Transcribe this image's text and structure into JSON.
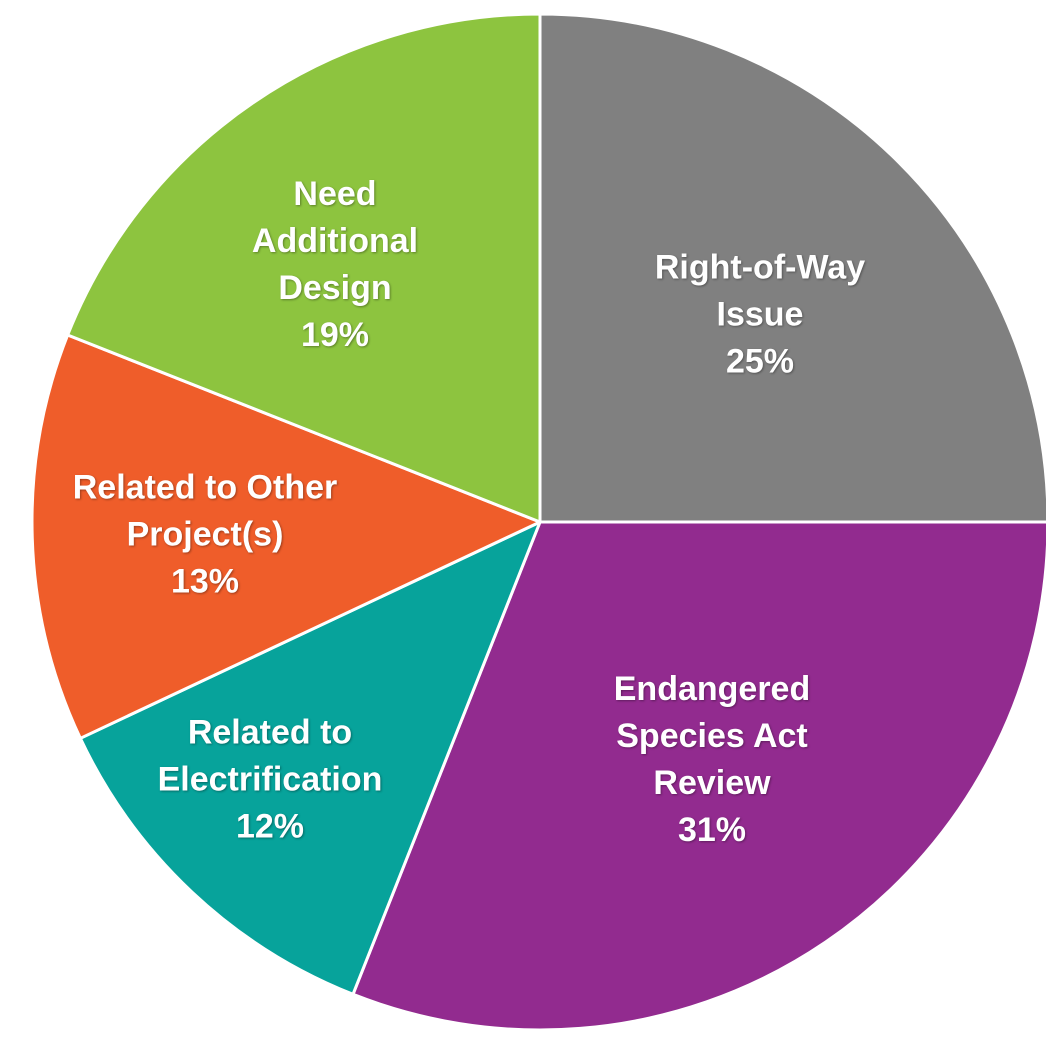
{
  "chart_data": {
    "type": "pie",
    "categories": [
      "Right-of-Way Issue",
      "Endangered Species Act Review",
      "Related to Electrification",
      "Related to Other Project(s)",
      "Need Additional Design"
    ],
    "values": [
      25,
      31,
      12,
      13,
      19
    ],
    "value_labels": [
      "25%",
      "31%",
      "12%",
      "13%",
      "19%"
    ],
    "colors": [
      "#808080",
      "#922b8f",
      "#07a39b",
      "#ef5d2a",
      "#8dc43f"
    ],
    "start_angle": 0,
    "direction": "clockwise"
  }
}
